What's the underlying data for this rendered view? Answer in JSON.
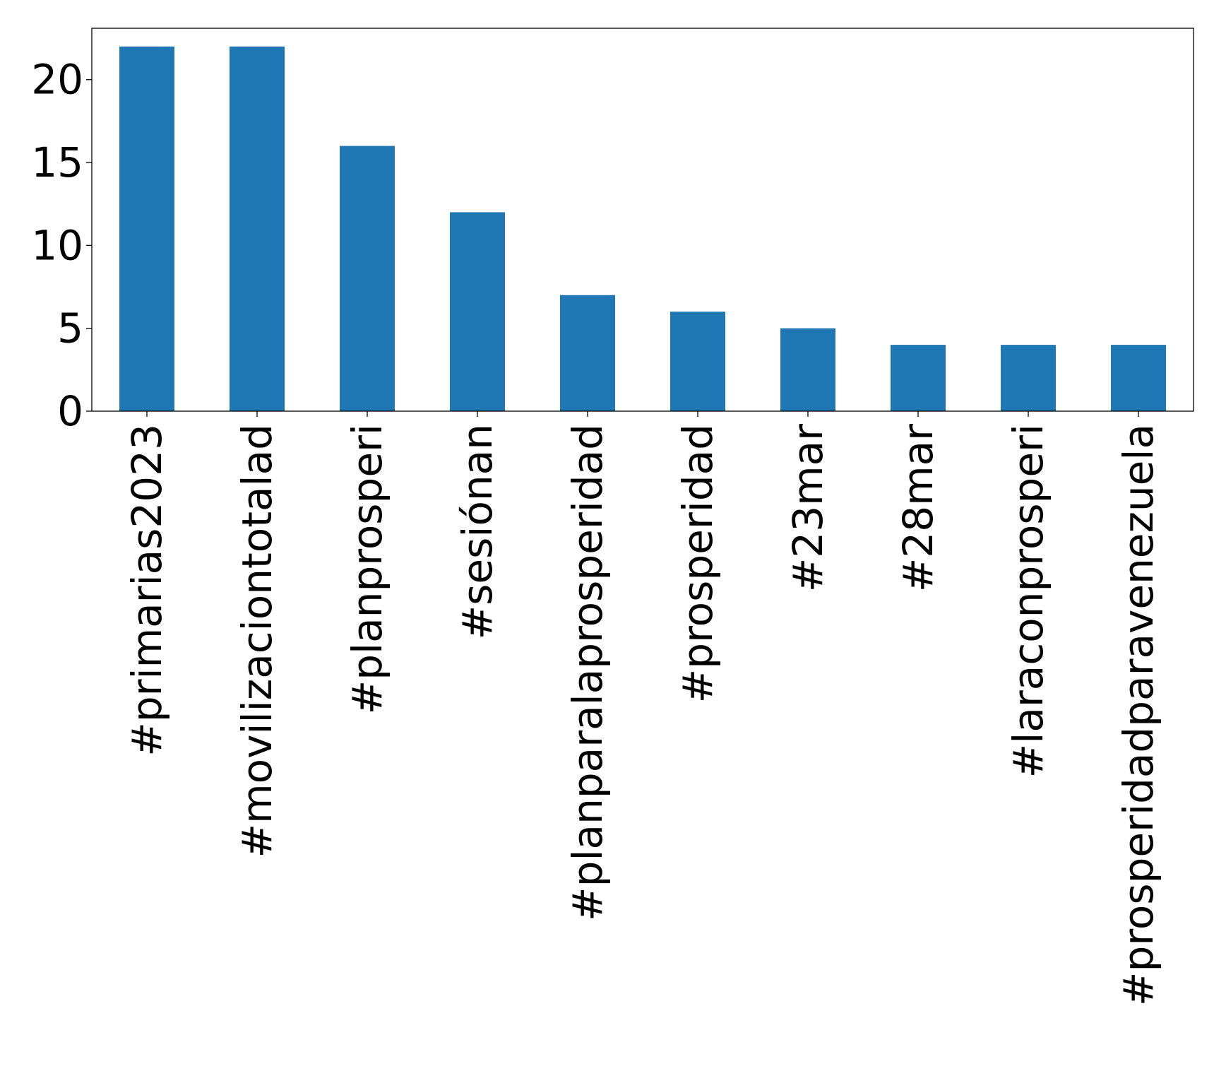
{
  "chart_data": {
    "type": "bar",
    "title": "",
    "xlabel": "",
    "ylabel": "",
    "categories": [
      "#primarias2023",
      "#movilizaciontotalad",
      "#planprosperi",
      "#sesiónan",
      "#planparalaprosperidad",
      "#prosperidad",
      "#23mar",
      "#28mar",
      "#laraconprosperi",
      "#prosperidadparavenezuela"
    ],
    "values": [
      22,
      22,
      16,
      12,
      7,
      6,
      5,
      4,
      4,
      4
    ],
    "ylim": [
      0,
      23.1
    ],
    "yticks": [
      0,
      5,
      10,
      15,
      20
    ],
    "ytick_labels": [
      "0",
      "5",
      "10",
      "15",
      "20"
    ],
    "grid": false,
    "legend": "none",
    "bar_color": "#1f77b4"
  }
}
